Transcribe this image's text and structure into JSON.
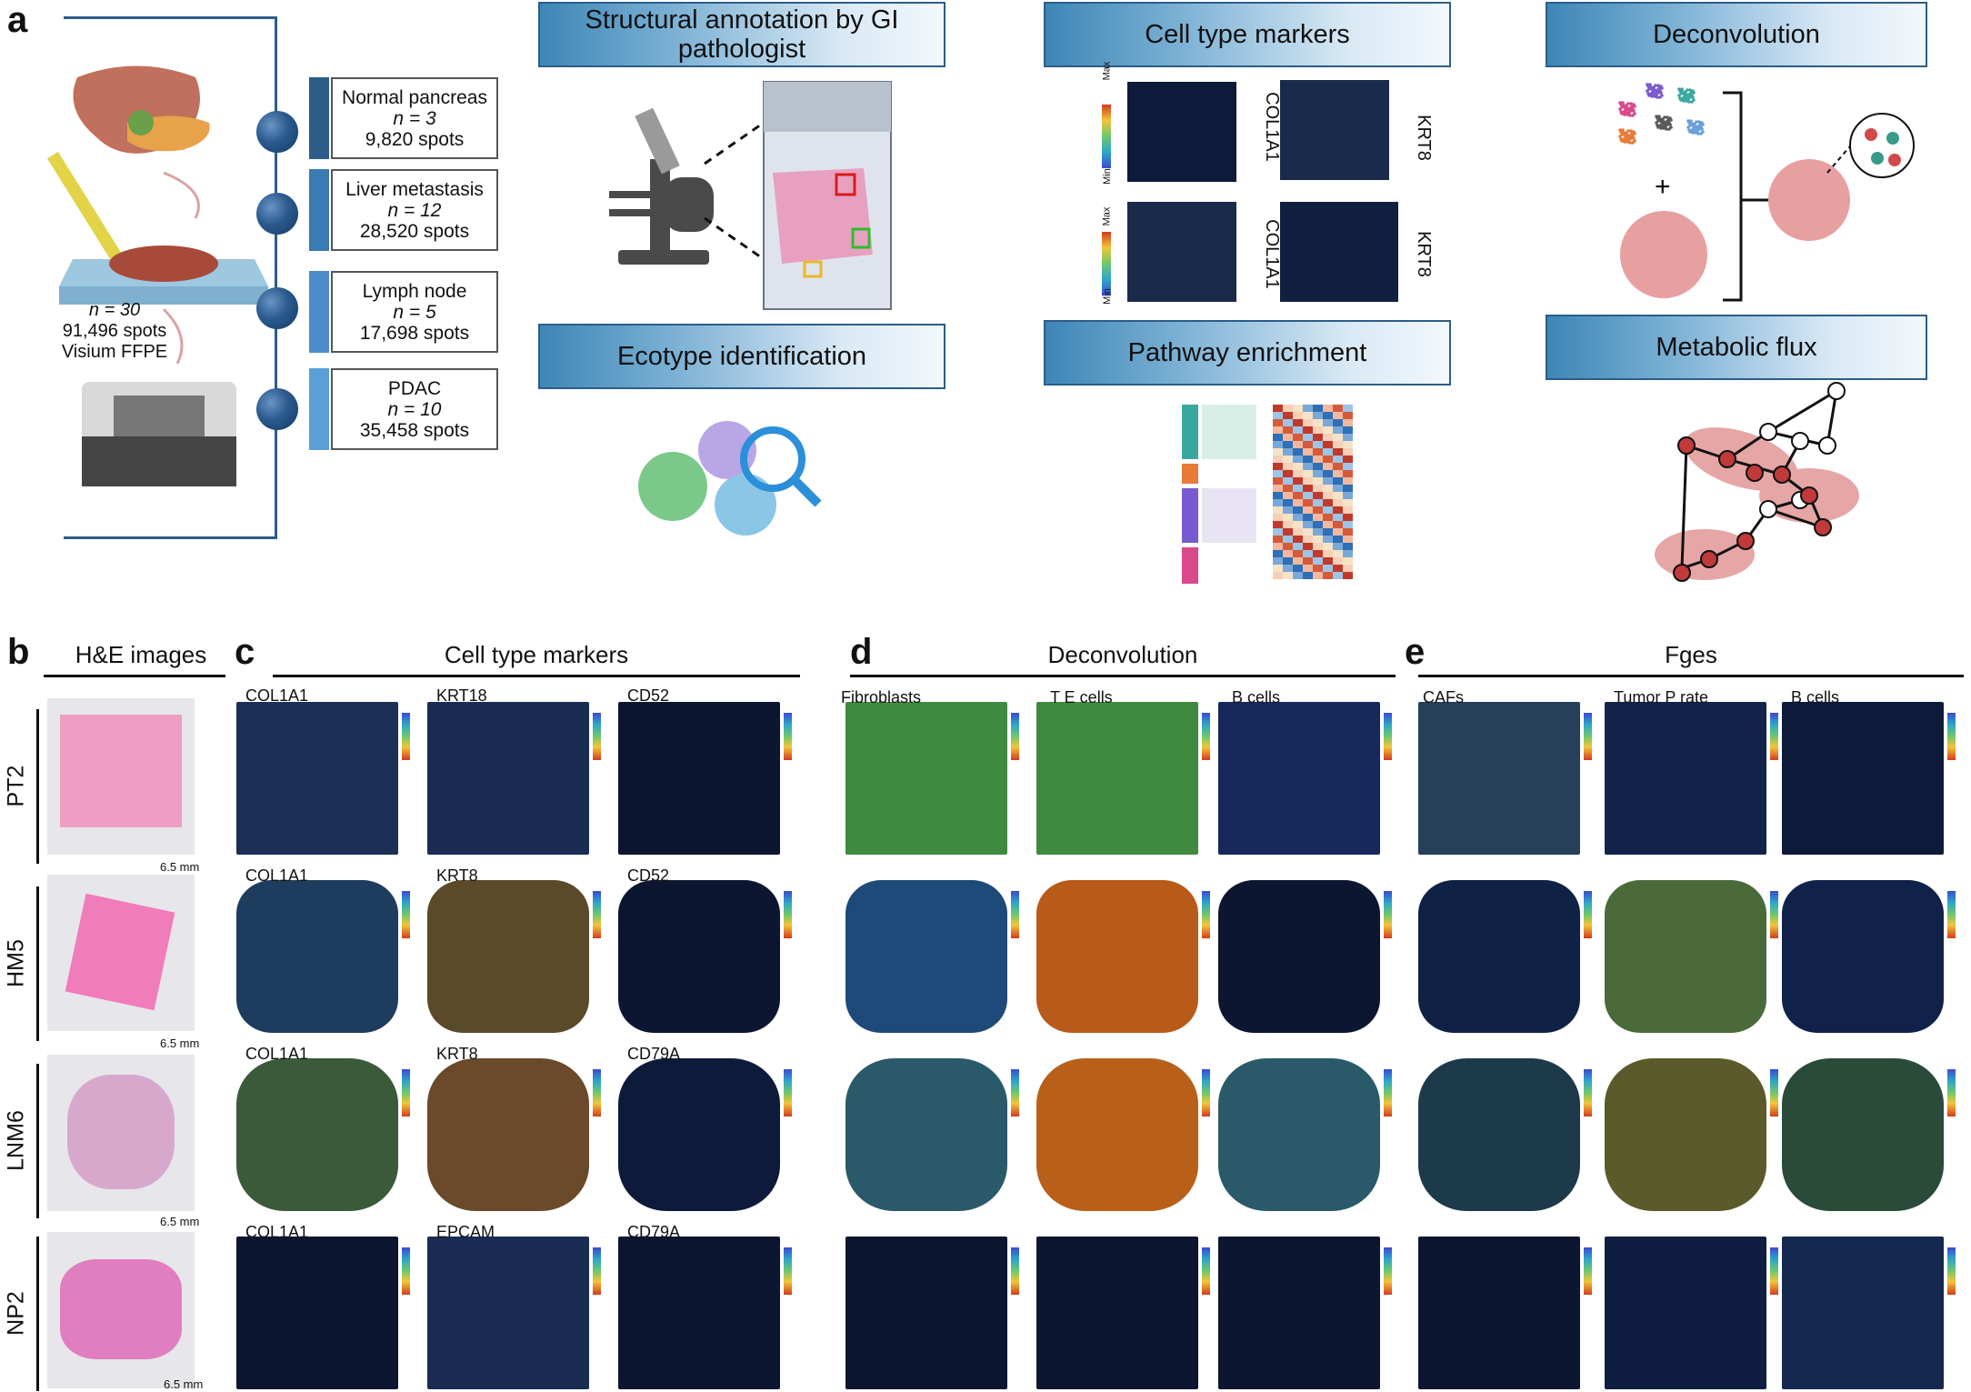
{
  "panel_letters": {
    "a": "a",
    "b": "b",
    "c": "c",
    "d": "d",
    "e": "e"
  },
  "panel_a": {
    "sample_summary": {
      "n": "n = 30",
      "spots": "91,496 spots",
      "platform": "Visium FFPE"
    },
    "cohorts": [
      {
        "name": "Normal pancreas",
        "n": "n = 3",
        "spots": "9,820 spots",
        "color": "#2b5d88"
      },
      {
        "name": "Liver metastasis",
        "n": "n = 12",
        "spots": "28,520 spots",
        "color": "#3b7ab3"
      },
      {
        "name": "Lymph node",
        "n": "n = 5",
        "spots": "17,698 spots",
        "color": "#4d8ccb"
      },
      {
        "name": "PDAC",
        "n": "n = 10",
        "spots": "35,458 spots",
        "color": "#5aa0d8"
      }
    ],
    "banners": {
      "structural": "Structural annotation by GI pathologist",
      "ecotype": "Ecotype identification",
      "markers": "Cell type markers",
      "pathway": "Pathway enrichment",
      "deconvolution": "Deconvolution",
      "metabolic": "Metabolic flux"
    },
    "marker_genes": [
      "COL1A1",
      "KRT8",
      "COL1A1",
      "KRT8"
    ],
    "colorbar": {
      "max": "Max",
      "min": "Min"
    },
    "plus": "+"
  },
  "panel_b": {
    "title": "H&E images",
    "rows": [
      "PT2",
      "HM5",
      "LNM6",
      "NP2"
    ],
    "scale": "6.5 mm"
  },
  "panel_c": {
    "title": "Cell type markers",
    "labels": [
      [
        "COL1A1",
        "KRT18",
        "CD52"
      ],
      [
        "COL1A1",
        "KRT8",
        "CD52"
      ],
      [
        "COL1A1",
        "KRT8",
        "CD79A"
      ],
      [
        "COL1A1",
        "EPCAM",
        "CD79A"
      ]
    ]
  },
  "panel_d": {
    "title": "Deconvolution",
    "labels": [
      "Fibroblasts",
      "T E cells",
      "B cells"
    ]
  },
  "panel_e": {
    "title": "Fges",
    "labels": [
      "CAFs",
      "Tumor P rate",
      "B cells"
    ]
  }
}
